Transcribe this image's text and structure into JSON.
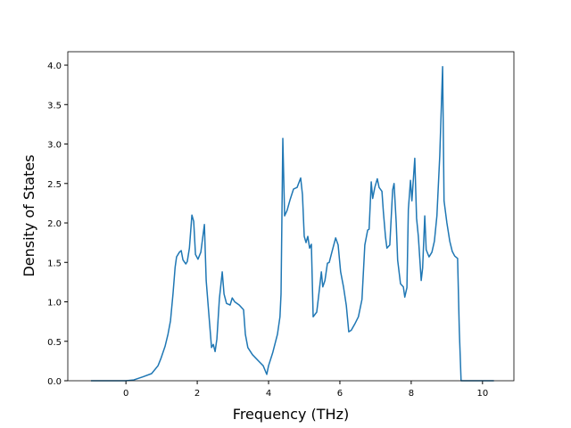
{
  "chart_data": {
    "type": "line",
    "x_label": "Frequency (THz)",
    "y_label": "Density of States",
    "color": "#1f77b4",
    "x": [
      -0.98,
      0,
      0.22,
      0.48,
      0.72,
      0.9,
      0.98,
      1.1,
      1.18,
      1.25,
      1.32,
      1.38,
      1.42,
      1.5,
      1.55,
      1.6,
      1.68,
      1.72,
      1.78,
      1.85,
      1.9,
      1.95,
      2.02,
      2.1,
      2.2,
      2.25,
      2.32,
      2.4,
      2.45,
      2.5,
      2.55,
      2.62,
      2.7,
      2.75,
      2.82,
      2.92,
      2.98,
      3.05,
      3.18,
      3.3,
      3.35,
      3.42,
      3.55,
      3.72,
      3.85,
      3.95,
      4.0,
      4.12,
      4.25,
      4.32,
      4.35,
      4.4,
      4.45,
      4.52,
      4.6,
      4.7,
      4.8,
      4.9,
      4.95,
      5.0,
      5.05,
      5.1,
      5.15,
      5.2,
      5.25,
      5.35,
      5.4,
      5.48,
      5.52,
      5.58,
      5.65,
      5.7,
      5.78,
      5.88,
      5.95,
      6.02,
      6.1,
      6.18,
      6.25,
      6.32,
      6.42,
      6.52,
      6.62,
      6.7,
      6.78,
      6.82,
      6.88,
      6.92,
      6.98,
      7.05,
      7.1,
      7.18,
      7.22,
      7.28,
      7.32,
      7.4,
      7.48,
      7.52,
      7.58,
      7.62,
      7.7,
      7.78,
      7.82,
      7.88,
      7.92,
      7.98,
      8.02,
      8.1,
      8.15,
      8.2,
      8.28,
      8.32,
      8.38,
      8.42,
      8.5,
      8.58,
      8.65,
      8.72,
      8.8,
      8.88,
      8.92,
      9.0,
      9.08,
      9.15,
      9.22,
      9.3,
      9.35,
      9.4,
      10.32
    ],
    "values": [
      0,
      0,
      0.01,
      0.05,
      0.09,
      0.19,
      0.28,
      0.44,
      0.59,
      0.76,
      1.1,
      1.44,
      1.57,
      1.63,
      1.65,
      1.53,
      1.48,
      1.51,
      1.68,
      2.1,
      2.02,
      1.6,
      1.54,
      1.63,
      1.98,
      1.27,
      0.87,
      0.42,
      0.46,
      0.37,
      0.53,
      1.04,
      1.38,
      1.1,
      0.98,
      0.96,
      1.05,
      1.0,
      0.96,
      0.9,
      0.59,
      0.42,
      0.33,
      0.25,
      0.19,
      0.08,
      0.19,
      0.36,
      0.59,
      0.81,
      1.1,
      3.07,
      2.09,
      2.16,
      2.29,
      2.43,
      2.45,
      2.57,
      2.36,
      1.83,
      1.75,
      1.83,
      1.68,
      1.73,
      0.81,
      0.87,
      1.06,
      1.38,
      1.19,
      1.27,
      1.49,
      1.5,
      1.64,
      1.81,
      1.72,
      1.38,
      1.19,
      0.95,
      0.62,
      0.64,
      0.72,
      0.81,
      1.03,
      1.72,
      1.91,
      1.92,
      2.52,
      2.31,
      2.45,
      2.56,
      2.45,
      2.4,
      2.14,
      1.82,
      1.68,
      1.72,
      2.42,
      2.5,
      2.0,
      1.53,
      1.23,
      1.19,
      1.06,
      1.18,
      2.17,
      2.54,
      2.28,
      2.82,
      2.06,
      1.83,
      1.27,
      1.43,
      2.09,
      1.66,
      1.57,
      1.63,
      1.77,
      2.09,
      2.85,
      3.98,
      2.28,
      2.0,
      1.77,
      1.64,
      1.58,
      1.55,
      0.64,
      0,
      0
    ],
    "xlim": [
      -1.63,
      10.88
    ],
    "ylim": [
      0,
      4.17
    ],
    "xticks": [
      0,
      2,
      4,
      6,
      8,
      10
    ],
    "yticks": [
      {
        "value": 0,
        "label": "0.0"
      },
      0.5,
      {
        "value": 1,
        "label": "1.0"
      },
      1.5,
      {
        "value": 2,
        "label": "2.0"
      },
      2.5,
      {
        "value": 3,
        "label": "3.0"
      },
      3.5,
      {
        "value": 4,
        "label": "4.0"
      }
    ]
  }
}
